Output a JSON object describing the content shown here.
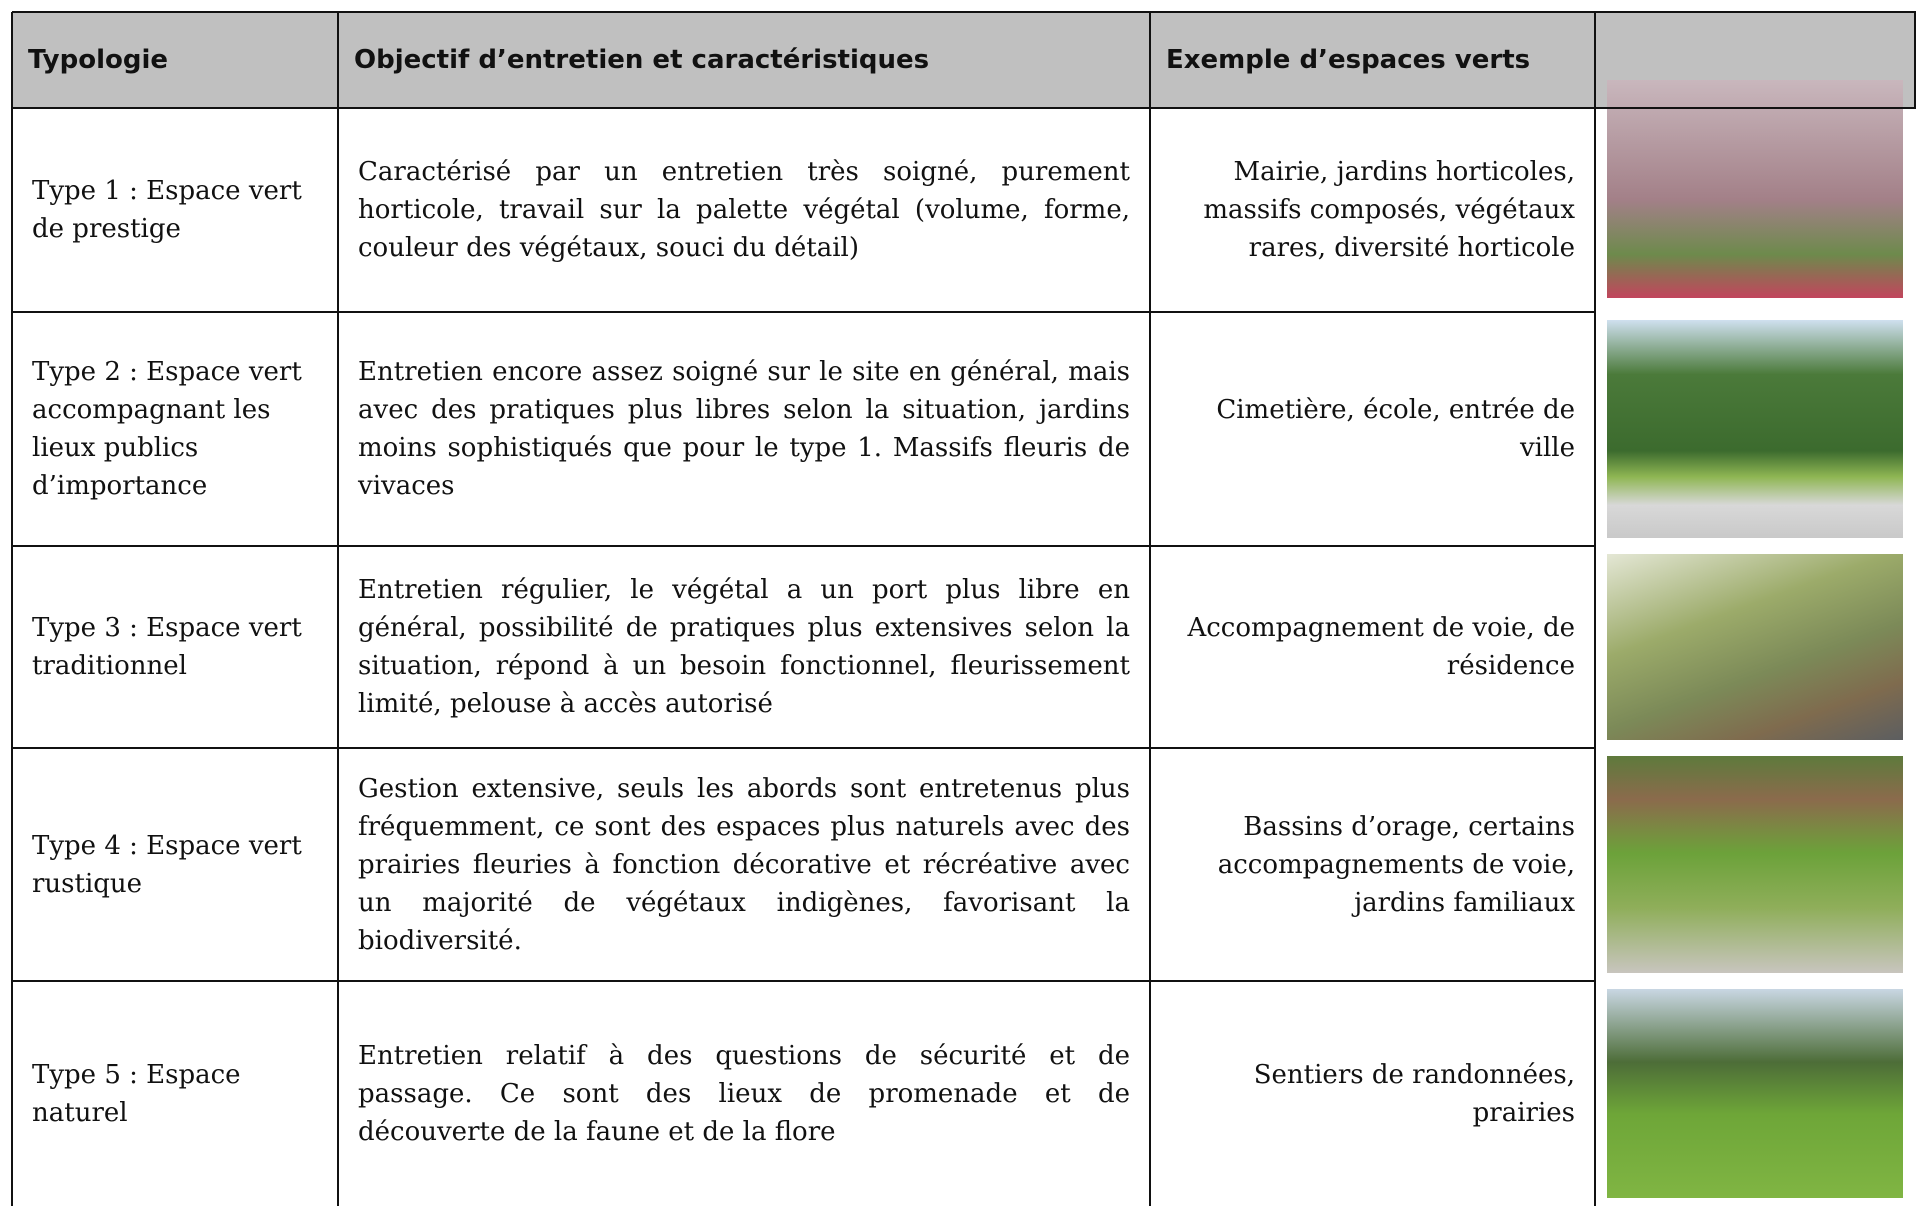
{
  "header": {
    "columns": [
      "Typologie",
      "Objectif d’entretien et caractéristiques",
      "Exemple d’espaces verts"
    ]
  },
  "rows": [
    {
      "typology": "Type 1 : Espace vert de prestige",
      "description": "Caractérisé par un entretien très soigné, purement horticole, travail sur la palette végétal (volume, forme, couleur des végétaux, souci du détail)",
      "examples": "Mairie, jardins horticoles, massifs composés, végétaux rares, diversité horticole"
    },
    {
      "typology": "Type 2 : Espace vert accompagnant les lieux publics d’importance",
      "description": "Entretien encore assez soigné sur le site en général, mais avec des pratiques plus libres selon la situation, jardins moins sophistiqués que pour le type 1. Massifs fleuris de vivaces",
      "examples": "Cimetière, école, entrée de ville"
    },
    {
      "typology": "Type 3 : Espace vert traditionnel",
      "description": "Entretien régulier, le végétal a un port plus libre en général, possibilité de pratiques plus extensives selon la situation, répond à un besoin fonctionnel, fleurissement limité, pelouse à accès autorisé",
      "examples": "Accompagnement de voie, de résidence"
    },
    {
      "typology": "Type 4 : Espace vert rustique",
      "description": "Gestion extensive, seuls les abords sont entretenus plus fréquemment, ce sont des espaces plus naturels avec des prairies fleuries à fonction décorative et récréative avec un majorité de végétaux indigènes, favorisant la biodiversité.",
      "examples": "Bassins d’orage, certains accompagnements de voie, jardins familiaux"
    },
    {
      "typology": "Type 5 : Espace naturel",
      "description": "Entretien relatif à des questions de sécurité et de passage. Ce sont des lieux de promenade et de découverte de la faune et de la flore",
      "examples": "Sentiers de randonnées, prairies"
    }
  ]
}
